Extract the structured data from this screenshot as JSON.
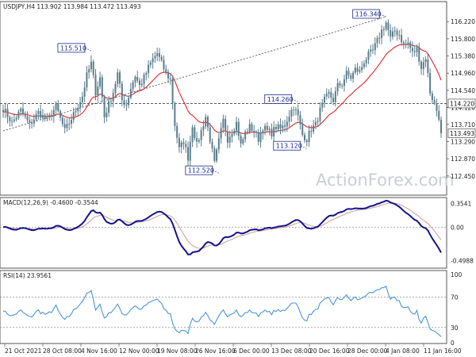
{
  "chart_data": {
    "type": "candlestick",
    "symbol_header": "USDJPY,H4  113.902  113.984  113.472  113.493",
    "watermark": "ActionForex.com",
    "colors": {
      "price": "#5a7d8c",
      "ma": "#e0262a",
      "macd": "#13138c",
      "signal": "#cc9b9b",
      "rsi": "#4c94d9",
      "marker": "#1d2a8c"
    },
    "x_labels": [
      "21 Oct 2021",
      "28 Oct 08:00",
      "4 Nov 16:00",
      "12 Nov 00:00",
      "19 Nov 08:00",
      "26 Nov 16:00",
      "6 Dec 00:00",
      "13 Dec 08:00",
      "20 Dec 16:00",
      "28 Dec 00:00",
      "4 Jan 08:00",
      "11 Jan 16:00"
    ],
    "price_panel": {
      "y_range": [
        12.0,
        16.67
      ],
      "y_ticks": [
        "116.220",
        "115.800",
        "115.380",
        "114.960",
        "114.540",
        "114.120",
        "113.710",
        "113.290",
        "112.870",
        "112.450"
      ],
      "y_tick_values": [
        16.22,
        15.8,
        15.38,
        14.96,
        14.54,
        14.12,
        13.71,
        13.29,
        12.87,
        12.45
      ],
      "current_price": {
        "label": "113.493",
        "value": 13.493
      },
      "level_line": {
        "label": "114.220",
        "value": 14.22
      },
      "annotations": [
        {
          "label": "115.510",
          "value": 15.51,
          "idx": 40
        },
        {
          "label": "116.340",
          "value": 16.34,
          "idx": 174
        },
        {
          "label": "114.260",
          "value": 14.26,
          "idx": 134
        },
        {
          "label": "113.120",
          "value": 13.12,
          "idx": 138
        },
        {
          "label": "112.520",
          "value": 12.52,
          "idx": 98
        }
      ],
      "trendline": {
        "from": {
          "idx": 0,
          "value": 13.55
        },
        "to": {
          "idx": 174,
          "value": 16.34
        }
      },
      "close_anchors": [
        [
          0,
          14.1
        ],
        [
          4,
          13.75
        ],
        [
          8,
          14.05
        ],
        [
          12,
          13.7
        ],
        [
          16,
          14.0
        ],
        [
          20,
          13.8
        ],
        [
          24,
          14.15
        ],
        [
          28,
          13.55
        ],
        [
          32,
          13.95
        ],
        [
          36,
          14.4
        ],
        [
          38,
          14.9
        ],
        [
          40,
          15.2
        ],
        [
          42,
          14.5
        ],
        [
          44,
          14.85
        ],
        [
          46,
          13.9
        ],
        [
          50,
          14.5
        ],
        [
          52,
          14.95
        ],
        [
          54,
          14.3
        ],
        [
          56,
          14.2
        ],
        [
          58,
          14.6
        ],
        [
          60,
          14.9
        ],
        [
          62,
          14.65
        ],
        [
          64,
          14.85
        ],
        [
          66,
          15.1
        ],
        [
          68,
          15.3
        ],
        [
          70,
          15.45
        ],
        [
          72,
          15.2
        ],
        [
          74,
          14.95
        ],
        [
          76,
          14.8
        ],
        [
          78,
          13.7
        ],
        [
          80,
          13.1
        ],
        [
          82,
          13.3
        ],
        [
          84,
          12.9
        ],
        [
          86,
          13.7
        ],
        [
          88,
          13.2
        ],
        [
          90,
          13.55
        ],
        [
          92,
          13.9
        ],
        [
          94,
          13.35
        ],
        [
          96,
          12.75
        ],
        [
          98,
          13.3
        ],
        [
          100,
          13.8
        ],
        [
          102,
          13.35
        ],
        [
          104,
          13.55
        ],
        [
          106,
          13.75
        ],
        [
          108,
          13.2
        ],
        [
          110,
          13.5
        ],
        [
          112,
          13.65
        ],
        [
          114,
          13.55
        ],
        [
          116,
          13.35
        ],
        [
          118,
          13.65
        ],
        [
          120,
          13.55
        ],
        [
          122,
          13.5
        ],
        [
          124,
          13.65
        ],
        [
          126,
          13.6
        ],
        [
          128,
          13.7
        ],
        [
          130,
          13.95
        ],
        [
          132,
          14.15
        ],
        [
          134,
          13.9
        ],
        [
          136,
          13.45
        ],
        [
          138,
          13.35
        ],
        [
          140,
          13.6
        ],
        [
          142,
          13.7
        ],
        [
          144,
          14.05
        ],
        [
          146,
          14.3
        ],
        [
          148,
          14.45
        ],
        [
          150,
          14.3
        ],
        [
          152,
          14.65
        ],
        [
          154,
          14.7
        ],
        [
          156,
          14.95
        ],
        [
          158,
          14.85
        ],
        [
          160,
          15.05
        ],
        [
          162,
          15.0
        ],
        [
          164,
          15.25
        ],
        [
          166,
          15.4
        ],
        [
          168,
          15.5
        ],
        [
          170,
          15.75
        ],
        [
          172,
          16.0
        ],
        [
          174,
          16.2
        ],
        [
          176,
          15.8
        ],
        [
          178,
          16.0
        ],
        [
          180,
          15.9
        ],
        [
          182,
          15.65
        ],
        [
          184,
          15.7
        ],
        [
          186,
          15.45
        ],
        [
          188,
          15.55
        ],
        [
          190,
          15.1
        ],
        [
          192,
          15.35
        ],
        [
          194,
          14.5
        ],
        [
          196,
          14.2
        ],
        [
          198,
          13.9
        ],
        [
          199,
          13.493
        ]
      ]
    },
    "macd_panel": {
      "label": "MACD(12,26,9) -0.4600 -0.3544",
      "y_range": [
        -0.6,
        0.42
      ],
      "y_ticks": [
        "0.3541",
        "0.00",
        "-0.4988"
      ],
      "y_tick_values": [
        0.3541,
        0.0,
        -0.4988
      ]
    },
    "rsi_panel": {
      "label": "RSI(14) 23.9561",
      "y_range": [
        10,
        103
      ],
      "y_ticks": [
        "100",
        "70",
        "30",
        "0"
      ],
      "y_tick_values": [
        100,
        70,
        30,
        0
      ],
      "dashed_levels": [
        70,
        30
      ]
    }
  }
}
